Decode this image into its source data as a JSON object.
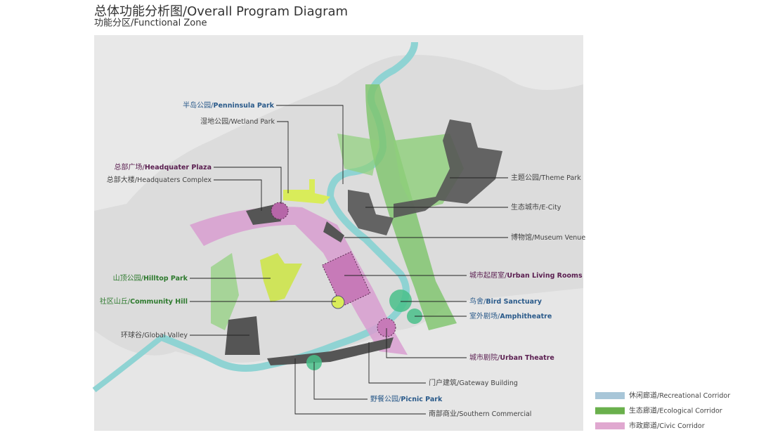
{
  "header": {
    "title": "总体功能分析图/Overall Program Diagram",
    "subtitle": "功能分区/Functional Zone"
  },
  "labels": [
    {
      "cn": "半岛公园/",
      "en": "Penninsula Park"
    },
    {
      "cn": "湿地公园/",
      "en": "Wetland Park"
    },
    {
      "cn": "总部广场/",
      "en": "Headquater Plaza"
    },
    {
      "cn": "总部大楼/",
      "en": "Headquaters Complex"
    },
    {
      "cn": "山顶公园/",
      "en": "Hilltop Park"
    },
    {
      "cn": "社区山丘/",
      "en": "Community Hill"
    },
    {
      "cn": "环球谷/",
      "en": "Global Valley"
    },
    {
      "cn": "主题公园/",
      "en": "Theme Park"
    },
    {
      "cn": "生态城市/",
      "en": "E-City"
    },
    {
      "cn": "博物馆/",
      "en": "Museum Venue"
    },
    {
      "cn": "城市起居室/",
      "en": "Urban Living Rooms"
    },
    {
      "cn": "鸟舍/",
      "en": "Bird Sanctuary"
    },
    {
      "cn": "室外剧场/",
      "en": "Amphitheatre"
    },
    {
      "cn": "城市剧院/",
      "en": "Urban Theatre"
    },
    {
      "cn": "门户建筑/",
      "en": "Gateway Building"
    },
    {
      "cn": "野餐公园/",
      "en": "Picnic Park"
    },
    {
      "cn": "南部商业/",
      "en": "Southern Commercial"
    }
  ],
  "legend": [
    {
      "cn": "休闲廊道/",
      "en": "Recreational  Corridor"
    },
    {
      "cn": "生态廊道/",
      "en": "Ecological  Corridor"
    },
    {
      "cn": "市政廊道/",
      "en": "Civic  Corridor"
    }
  ]
}
